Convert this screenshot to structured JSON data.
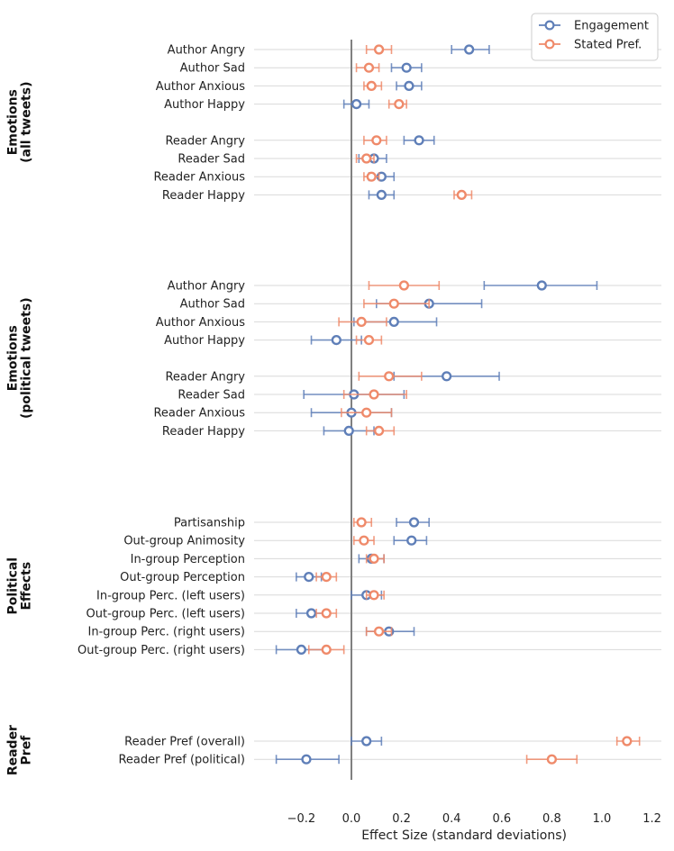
{
  "chart_data": {
    "type": "scatter",
    "subtype": "dot-and-whisker",
    "xlabel": "Effect Size (standard deviations)",
    "xlim": [
      -0.36,
      1.24
    ],
    "xticks": [
      "−0.2",
      "0.0",
      "0.2",
      "0.4",
      "0.6",
      "0.8",
      "1.0",
      "1.2"
    ],
    "xtick_values": [
      -0.2,
      0.0,
      0.2,
      0.4,
      0.6,
      0.8,
      1.0,
      1.2
    ],
    "reference_line_x": 0,
    "grid": "horizontal per row",
    "legend_position": "top-right",
    "legend": [
      "Engagement",
      "Stated Pref."
    ],
    "colors": {
      "Engagement": "#5f7fb8",
      "Stated Pref.": "#ef8a6a",
      "zero_line": "#808080",
      "grid": "#d9d9d9"
    },
    "groups": [
      {
        "label": [
          "Emotions",
          "(all tweets)"
        ],
        "rows": [
          {
            "label": "Author Angry",
            "engagement": [
              0.47,
              0.4,
              0.55
            ],
            "stated": [
              0.11,
              0.06,
              0.16
            ]
          },
          {
            "label": "Author Sad",
            "engagement": [
              0.22,
              0.16,
              0.28
            ],
            "stated": [
              0.07,
              0.02,
              0.11
            ]
          },
          {
            "label": "Author Anxious",
            "engagement": [
              0.23,
              0.18,
              0.28
            ],
            "stated": [
              0.08,
              0.05,
              0.12
            ]
          },
          {
            "label": "Author Happy",
            "engagement": [
              0.02,
              -0.03,
              0.07
            ],
            "stated": [
              0.19,
              0.15,
              0.22
            ]
          },
          {
            "label": "Reader Angry",
            "engagement": [
              0.27,
              0.21,
              0.33
            ],
            "stated": [
              0.1,
              0.05,
              0.14
            ]
          },
          {
            "label": "Reader Sad",
            "engagement": [
              0.09,
              0.03,
              0.14
            ],
            "stated": [
              0.06,
              0.02,
              0.09
            ]
          },
          {
            "label": "Reader Anxious",
            "engagement": [
              0.12,
              0.07,
              0.17
            ],
            "stated": [
              0.08,
              0.05,
              0.11
            ]
          },
          {
            "label": "Reader Happy",
            "engagement": [
              0.12,
              0.07,
              0.17
            ],
            "stated": [
              0.44,
              0.41,
              0.48
            ]
          }
        ]
      },
      {
        "label": [
          "Emotions",
          "(political tweets)"
        ],
        "rows": [
          {
            "label": "Author Angry",
            "engagement": [
              0.76,
              0.53,
              0.98
            ],
            "stated": [
              0.21,
              0.07,
              0.35
            ]
          },
          {
            "label": "Author Sad",
            "engagement": [
              0.31,
              0.1,
              0.52
            ],
            "stated": [
              0.17,
              0.05,
              0.31
            ]
          },
          {
            "label": "Author Anxious",
            "engagement": [
              0.17,
              0.01,
              0.34
            ],
            "stated": [
              0.04,
              -0.05,
              0.14
            ]
          },
          {
            "label": "Author Happy",
            "engagement": [
              -0.06,
              -0.16,
              0.04
            ],
            "stated": [
              0.07,
              0.02,
              0.12
            ]
          },
          {
            "label": "Reader Angry",
            "engagement": [
              0.38,
              0.17,
              0.59
            ],
            "stated": [
              0.15,
              0.03,
              0.28
            ]
          },
          {
            "label": "Reader Sad",
            "engagement": [
              0.01,
              -0.19,
              0.21
            ],
            "stated": [
              0.09,
              -0.03,
              0.22
            ]
          },
          {
            "label": "Reader Anxious",
            "engagement": [
              0.0,
              -0.16,
              0.16
            ],
            "stated": [
              0.06,
              -0.04,
              0.16
            ]
          },
          {
            "label": "Reader Happy",
            "engagement": [
              -0.01,
              -0.11,
              0.09
            ],
            "stated": [
              0.11,
              0.06,
              0.17
            ]
          }
        ]
      },
      {
        "label": [
          "Political",
          "Effects"
        ],
        "rows": [
          {
            "label": "Partisanship",
            "engagement": [
              0.25,
              0.18,
              0.31
            ],
            "stated": [
              0.04,
              0.01,
              0.08
            ]
          },
          {
            "label": "Out-group Animosity",
            "engagement": [
              0.24,
              0.17,
              0.3
            ],
            "stated": [
              0.05,
              0.01,
              0.09
            ]
          },
          {
            "label": "In-group Perception",
            "engagement": [
              0.08,
              0.03,
              0.13
            ],
            "stated": [
              0.09,
              0.06,
              0.13
            ]
          },
          {
            "label": "Out-group Perception",
            "engagement": [
              -0.17,
              -0.22,
              -0.12
            ],
            "stated": [
              -0.1,
              -0.14,
              -0.06
            ]
          },
          {
            "label": "In-group Perc. (left users)",
            "engagement": [
              0.06,
              0.0,
              0.12
            ],
            "stated": [
              0.09,
              0.06,
              0.13
            ]
          },
          {
            "label": "Out-group Perc. (left users)",
            "engagement": [
              -0.16,
              -0.22,
              -0.1
            ],
            "stated": [
              -0.1,
              -0.14,
              -0.06
            ]
          },
          {
            "label": "In-group Perc. (right users)",
            "engagement": [
              0.15,
              0.06,
              0.25
            ],
            "stated": [
              0.11,
              0.06,
              0.16
            ]
          },
          {
            "label": "Out-group Perc. (right users)",
            "engagement": [
              -0.2,
              -0.3,
              -0.1
            ],
            "stated": [
              -0.1,
              -0.17,
              -0.03
            ]
          }
        ]
      },
      {
        "label": [
          "Reader",
          "Pref"
        ],
        "rows": [
          {
            "label": "Reader Pref (overall)",
            "engagement": [
              0.06,
              0.0,
              0.12
            ],
            "stated": [
              1.1,
              1.06,
              1.15
            ]
          },
          {
            "label": "Reader Pref (political)",
            "engagement": [
              -0.18,
              -0.3,
              -0.05
            ],
            "stated": [
              0.8,
              0.7,
              0.9
            ]
          }
        ]
      }
    ]
  }
}
